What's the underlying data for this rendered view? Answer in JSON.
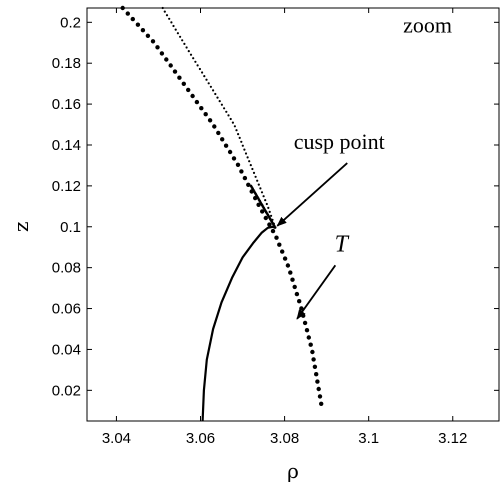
{
  "chart_data": {
    "type": "scatter",
    "xlabel": "ρ",
    "ylabel": "z",
    "xlim": [
      3.033,
      3.131
    ],
    "ylim": [
      0.005,
      0.207
    ],
    "xticks": [
      3.04,
      3.06,
      3.08,
      3.1,
      3.12
    ],
    "xtick_labels": [
      "3.04",
      "3.06",
      "3.08",
      "3.1",
      "3.12"
    ],
    "yticks": [
      0.02,
      0.04,
      0.06,
      0.08,
      0.1,
      0.12,
      0.14,
      0.16,
      0.18,
      0.2
    ],
    "ytick_labels": [
      "0.02",
      "0.04",
      "0.06",
      "0.08",
      "0.1",
      "0.12",
      "0.14",
      "0.16",
      "0.18",
      "0.2"
    ],
    "grid": false,
    "annotations": [
      {
        "text": "zoom",
        "style": "normal",
        "x": 3.114,
        "y": 0.195
      },
      {
        "text": "cusp point",
        "style": "normal",
        "x": 3.093,
        "y": 0.138,
        "arrow_to": [
          3.0778,
          0.0995
        ]
      },
      {
        "text": "T",
        "style": "italic",
        "x": 3.0935,
        "y": 0.088,
        "arrow_to": [
          3.0825,
          0.054
        ]
      }
    ],
    "series": [
      {
        "role": "large-dotted-curve",
        "marker_size": 2.2,
        "x": [
          3.0415,
          3.049,
          3.056,
          3.063,
          3.069,
          3.074,
          3.078,
          3.081,
          3.084,
          3.0865,
          3.089
        ],
        "y": [
          0.207,
          0.19,
          0.17,
          0.15,
          0.13,
          0.11,
          0.095,
          0.08,
          0.06,
          0.04,
          0.01
        ]
      },
      {
        "role": "small-dotted-curve",
        "marker_size": 1.1,
        "x": [
          3.051,
          3.056,
          3.062,
          3.068,
          3.072,
          3.076,
          3.0778
        ],
        "y": [
          0.207,
          0.19,
          0.17,
          0.15,
          0.13,
          0.11,
          0.0995
        ]
      },
      {
        "role": "solid-curve",
        "x": [
          3.0605,
          3.0608,
          3.0615,
          3.063,
          3.065,
          3.0675,
          3.07,
          3.0725,
          3.0745,
          3.076,
          3.0772,
          3.0778
        ],
        "y": [
          0.005,
          0.02,
          0.035,
          0.05,
          0.063,
          0.075,
          0.085,
          0.092,
          0.097,
          0.0995,
          0.1,
          0.0995
        ]
      },
      {
        "role": "dense-dotted-segment",
        "marker_size": 1.3,
        "x": [
          3.072,
          3.0778
        ],
        "y": [
          0.12,
          0.0995
        ]
      }
    ]
  }
}
